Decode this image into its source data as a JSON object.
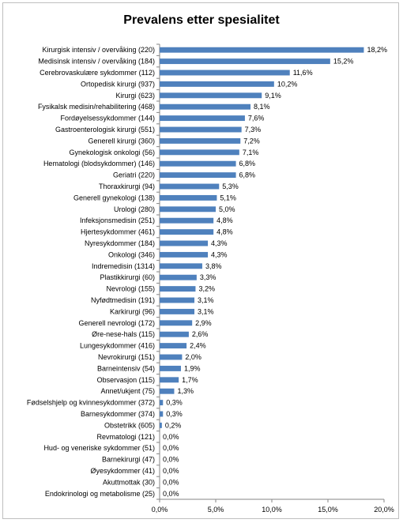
{
  "chart_data": {
    "type": "bar",
    "orientation": "horizontal",
    "title": "Prevalens etter spesialitet",
    "xlim": [
      0,
      20
    ],
    "xticks": [
      0,
      5,
      10,
      15,
      20
    ],
    "xtick_labels": [
      "0,0%",
      "5,0%",
      "10,0%",
      "15,0%",
      "20,0%"
    ],
    "bar_color": "#4f81bd",
    "grid": false,
    "categories": [
      "Kirurgisk intensiv / overvåking (220)",
      "Medisinsk intensiv / overvåking (184)",
      "Cerebrovaskulære sykdommer (112)",
      "Ortopedisk kirurgi (937)",
      "Kirurgi (623)",
      "Fysikalsk medisin/rehabilitering (468)",
      "Fordøyelsessykdommer (144)",
      "Gastroenterologisk kirurgi (551)",
      "Generell kirurgi (360)",
      "Gynekologisk onkologi (56)",
      "Hematologi (blodsykdommer) (146)",
      "Geriatri (220)",
      "Thoraxkirurgi (94)",
      "Generell gynekologi (138)",
      "Urologi (280)",
      "Infeksjonsmedisin (251)",
      "Hjertesykdommer (461)",
      "Nyresykdommer (184)",
      "Onkologi (346)",
      "Indremedisin (1314)",
      "Plastikkirurgi (60)",
      "Nevrologi (155)",
      "Nyfødtmedisin (191)",
      "Karkirurgi (96)",
      "Generell nevrologi (172)",
      "Øre-nese-hals (115)",
      "Lungesykdommer (416)",
      "Nevrokirurgi (151)",
      "Barneintensiv (54)",
      "Observasjon (115)",
      "Annet/ukjent (75)",
      "Fødselshjelp og kvinnesykdommer (372)",
      "Barnesykdommer (374)",
      "Obstetrikk (605)",
      "Revmatologi (121)",
      "Hud- og veneriske sykdommer (51)",
      "Barnekirurgi (47)",
      "Øyesykdommer (41)",
      "Akuttmottak (30)",
      "Endokrinologi og metabolisme (25)"
    ],
    "values": [
      18.2,
      15.2,
      11.6,
      10.2,
      9.1,
      8.1,
      7.6,
      7.3,
      7.2,
      7.1,
      6.8,
      6.8,
      5.3,
      5.1,
      5.0,
      4.8,
      4.8,
      4.3,
      4.3,
      3.8,
      3.3,
      3.2,
      3.1,
      3.1,
      2.9,
      2.6,
      2.4,
      2.0,
      1.9,
      1.7,
      1.3,
      0.3,
      0.3,
      0.2,
      0.0,
      0.0,
      0.0,
      0.0,
      0.0,
      0.0
    ],
    "value_labels": [
      "18,2%",
      "15,2%",
      "11,6%",
      "10,2%",
      "9,1%",
      "8,1%",
      "7,6%",
      "7,3%",
      "7,2%",
      "7,1%",
      "6,8%",
      "6,8%",
      "5,3%",
      "5,1%",
      "5,0%",
      "4,8%",
      "4,8%",
      "4,3%",
      "4,3%",
      "3,8%",
      "3,3%",
      "3,2%",
      "3,1%",
      "3,1%",
      "2,9%",
      "2,6%",
      "2,4%",
      "2,0%",
      "1,9%",
      "1,7%",
      "1,3%",
      "0,3%",
      "0,3%",
      "0,2%",
      "0,0%",
      "0,0%",
      "0,0%",
      "0,0%",
      "0,0%",
      "0,0%"
    ]
  }
}
